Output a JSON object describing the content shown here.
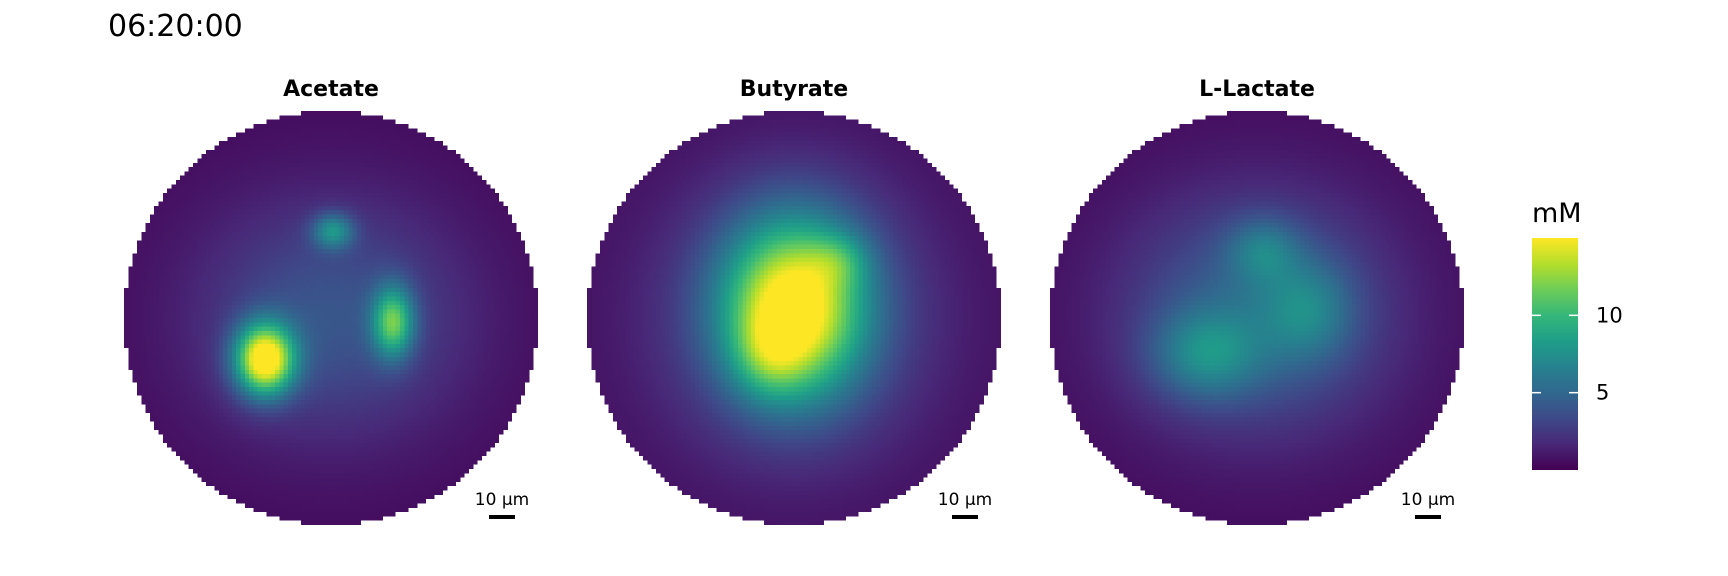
{
  "timestamp": "06:20:00",
  "chart_data": {
    "type": "heatmap",
    "shape": "circular",
    "panels": [
      {
        "title": "Acetate",
        "background": 0.4,
        "hotspots": [
          {
            "x": -0.32,
            "y": -0.2,
            "sx": 0.1,
            "sy": 0.12,
            "amp": 14.6
          },
          {
            "x": 0.3,
            "y": -0.02,
            "sx": 0.07,
            "sy": 0.12,
            "amp": 8.8
          },
          {
            "x": 0.01,
            "y": 0.42,
            "sx": 0.07,
            "sy": 0.06,
            "amp": 5.6
          },
          {
            "x": 0.0,
            "y": 0.0,
            "sx": 0.45,
            "sy": 0.4,
            "amp": 3.6
          }
        ]
      },
      {
        "title": "Butyrate",
        "background": 0.4,
        "hotspots": [
          {
            "x": 0.0,
            "y": 0.05,
            "sx": 0.24,
            "sy": 0.3,
            "amp": 13.5
          },
          {
            "x": -0.12,
            "y": -0.18,
            "sx": 0.12,
            "sy": 0.14,
            "amp": 3.0
          },
          {
            "x": 0.22,
            "y": 0.28,
            "sx": 0.1,
            "sy": 0.09,
            "amp": 2.5
          },
          {
            "x": 0.0,
            "y": 0.0,
            "sx": 0.5,
            "sy": 0.5,
            "amp": 3.2
          }
        ]
      },
      {
        "title": "L-Lactate",
        "background": 0.4,
        "hotspots": [
          {
            "x": -0.25,
            "y": -0.18,
            "sx": 0.18,
            "sy": 0.15,
            "amp": 4.2
          },
          {
            "x": 0.25,
            "y": 0.04,
            "sx": 0.15,
            "sy": 0.17,
            "amp": 3.2
          },
          {
            "x": 0.03,
            "y": 0.33,
            "sx": 0.12,
            "sy": 0.11,
            "amp": 3.2
          },
          {
            "x": 0.0,
            "y": 0.02,
            "sx": 0.45,
            "sy": 0.4,
            "amp": 4.6
          }
        ]
      }
    ],
    "scale_bar": {
      "label": "10 µm"
    },
    "colorbar": {
      "title": "mM",
      "colormap": "viridis",
      "min": 0,
      "max": 15,
      "ticks": [
        5,
        10
      ],
      "tick_labels": [
        "5",
        "10"
      ]
    }
  }
}
